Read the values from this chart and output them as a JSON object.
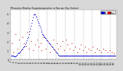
{
  "title": "Milwaukee Weather Evapotranspiration vs Rain per Day (Inches)",
  "title_fontsize": 2.2,
  "bg_color": "#d8d8d8",
  "plot_bg_color": "#ffffff",
  "legend_et_label": "ET",
  "legend_rain_label": "Rain",
  "legend_et_color": "#0000cc",
  "legend_rain_color": "#cc0000",
  "ylim": [
    0,
    0.55
  ],
  "ylabel_fontsize": 2.5,
  "xlabel_fontsize": 2.5,
  "yticks": [
    0.0,
    0.1,
    0.2,
    0.3,
    0.4,
    0.5
  ],
  "ytick_labels": [
    "0",
    ".1",
    ".2",
    ".3",
    ".4",
    ".5"
  ],
  "vline_color": "#999999",
  "vline_style": "--",
  "marker_size": 0.8,
  "num_days": 151,
  "et_x": [
    0,
    1,
    2,
    3,
    4,
    5,
    6,
    7,
    8,
    9,
    10,
    11,
    12,
    13,
    14,
    15,
    16,
    17,
    18,
    19,
    20,
    21,
    22,
    23,
    24,
    25,
    26,
    27,
    28,
    29,
    30,
    31,
    32,
    33,
    34,
    35,
    36,
    37,
    38,
    39,
    40,
    41,
    42,
    43,
    44,
    45,
    46,
    47,
    48,
    49,
    50,
    51,
    52,
    53,
    54,
    55,
    56,
    57,
    58,
    59,
    60,
    61,
    62,
    63,
    64,
    65,
    66,
    67,
    68,
    69,
    70,
    71,
    72,
    73,
    74,
    75,
    76,
    77,
    78,
    79,
    80,
    81,
    82,
    83,
    84,
    85,
    86,
    87,
    88,
    89,
    90,
    91,
    92,
    93,
    94,
    95,
    96,
    97,
    98,
    99,
    100,
    101,
    102,
    103,
    104,
    105,
    106,
    107,
    108,
    109,
    110,
    111,
    112,
    113,
    114,
    115,
    116,
    117,
    118,
    119,
    120,
    121,
    122,
    123,
    124,
    125,
    126,
    127,
    128,
    129,
    130,
    131,
    132,
    133,
    134,
    135,
    136,
    137,
    138,
    139,
    140,
    141,
    142,
    143,
    144,
    145,
    146,
    147,
    148,
    149,
    150
  ],
  "et_y": [
    0.04,
    0.04,
    0.04,
    0.04,
    0.03,
    0.03,
    0.03,
    0.04,
    0.05,
    0.06,
    0.07,
    0.07,
    0.08,
    0.09,
    0.1,
    0.11,
    0.12,
    0.13,
    0.14,
    0.15,
    0.17,
    0.19,
    0.21,
    0.23,
    0.25,
    0.28,
    0.31,
    0.34,
    0.37,
    0.4,
    0.43,
    0.46,
    0.49,
    0.5,
    0.49,
    0.48,
    0.46,
    0.44,
    0.42,
    0.4,
    0.38,
    0.36,
    0.34,
    0.32,
    0.3,
    0.28,
    0.27,
    0.26,
    0.25,
    0.24,
    0.23,
    0.22,
    0.21,
    0.2,
    0.19,
    0.18,
    0.17,
    0.16,
    0.15,
    0.14,
    0.13,
    0.12,
    0.11,
    0.1,
    0.09,
    0.08,
    0.07,
    0.06,
    0.05,
    0.04,
    0.04,
    0.04,
    0.04,
    0.04,
    0.04,
    0.04,
    0.04,
    0.04,
    0.04,
    0.04,
    0.04,
    0.04,
    0.04,
    0.04,
    0.04,
    0.04,
    0.04,
    0.04,
    0.04,
    0.04,
    0.04,
    0.04,
    0.04,
    0.04,
    0.04,
    0.04,
    0.04,
    0.04,
    0.04,
    0.04,
    0.04,
    0.04,
    0.04,
    0.04,
    0.04,
    0.04,
    0.04,
    0.04,
    0.04,
    0.04,
    0.04,
    0.04,
    0.04,
    0.04,
    0.04,
    0.04,
    0.04,
    0.04,
    0.04,
    0.04,
    0.04,
    0.04,
    0.04,
    0.04,
    0.04,
    0.04,
    0.04,
    0.04,
    0.04,
    0.04,
    0.04,
    0.04,
    0.04,
    0.04,
    0.04,
    0.04,
    0.04,
    0.04,
    0.04,
    0.04,
    0.04,
    0.04,
    0.04,
    0.04,
    0.04,
    0.04,
    0.04,
    0.04,
    0.04,
    0.04,
    0.04
  ],
  "rain_x": [
    1,
    3,
    6,
    9,
    11,
    14,
    16,
    18,
    21,
    23,
    25,
    28,
    31,
    34,
    37,
    39,
    42,
    44,
    47,
    50,
    53,
    56,
    58,
    61,
    63,
    66,
    68,
    71,
    74,
    76,
    79,
    81,
    84,
    87,
    89,
    92,
    95,
    98,
    100,
    103,
    106,
    109,
    112,
    115,
    118,
    121,
    124,
    127,
    130,
    133,
    136,
    139,
    142,
    145,
    148
  ],
  "rain_y": [
    0.18,
    0.08,
    0.28,
    0.12,
    0.22,
    0.1,
    0.25,
    0.18,
    0.15,
    0.3,
    0.12,
    0.2,
    0.1,
    0.16,
    0.22,
    0.14,
    0.18,
    0.1,
    0.25,
    0.12,
    0.2,
    0.08,
    0.15,
    0.22,
    0.1,
    0.18,
    0.12,
    0.15,
    0.2,
    0.1,
    0.22,
    0.16,
    0.12,
    0.18,
    0.1,
    0.14,
    0.08,
    0.12,
    0.16,
    0.1,
    0.14,
    0.08,
    0.12,
    0.1,
    0.14,
    0.08,
    0.12,
    0.1,
    0.08,
    0.12,
    0.1,
    0.08,
    0.1,
    0.08,
    0.06
  ],
  "vline_positions": [
    13,
    26,
    39,
    52,
    65,
    78,
    91,
    104,
    117,
    130,
    143
  ],
  "xtick_step": 4
}
